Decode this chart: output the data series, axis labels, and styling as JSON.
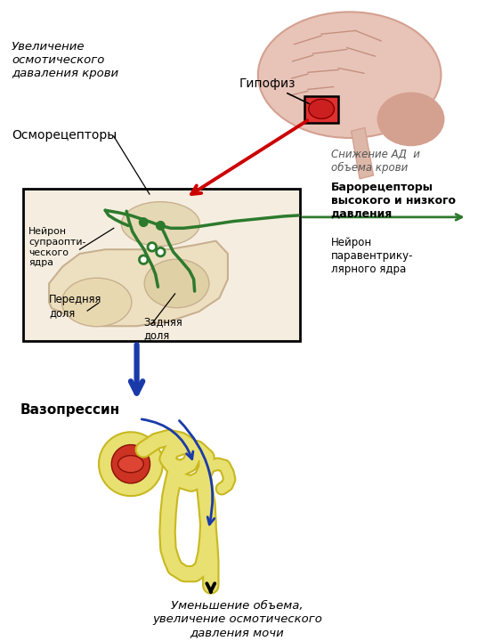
{
  "bg_color": "#ffffff",
  "texts": {
    "gipofiz": "Гипофиз",
    "uvelic": "Увеличение\nосмотического\nдаваления крови",
    "osmor": "Осморецепторы",
    "neyron_supra": "Нейрон\nсупраопти-\nческого\nядра",
    "perednyaya": "Передняя\nдоля",
    "zadnyaya": "Задняя\nдоля",
    "snizenie": "Снижение АД  и\nобъема крови",
    "baroreceptory": "Барорецепторы\nвысокого и низкого\nдавления",
    "neyron_para": "Нейрон\nпаравентрику-\nлярного ядра",
    "vazopressin": "Вазопрессин",
    "umenshenie": "Уменьшение объема,\nувеличение осмотического\nдавления мочи"
  },
  "colors": {
    "green": "#2d7a2d",
    "red_arrow": "#cc0000",
    "blue_arrow": "#1a3aaa",
    "black": "#000000",
    "brain_pink": "#e8c4b8",
    "brain_outline": "#d4a090",
    "box_fill": "#f5eee0",
    "nephron_yellow": "#e8e070",
    "nephron_outline": "#c8b820",
    "glom_red": "#cc3322",
    "text_italic_color": "#555555",
    "gyri": "#c49080",
    "pit_red": "#e03030",
    "beige_body": "#ede0c0",
    "beige_body_edge": "#c8b090"
  }
}
